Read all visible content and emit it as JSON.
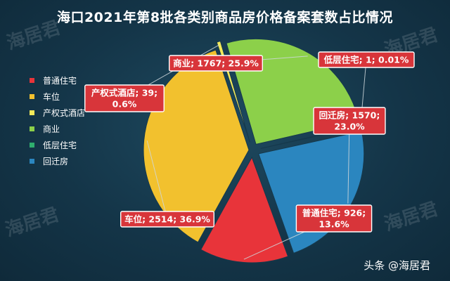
{
  "chart_data": {
    "type": "pie",
    "title": "海口2021年第8批各类别商品房价格备案套数占比情况",
    "categories": [
      "普通住宅",
      "车位",
      "产权式酒店",
      "商业",
      "低层住宅",
      "回迁房"
    ],
    "values": [
      926,
      2514,
      39,
      1767,
      1,
      1570
    ],
    "percents": [
      "13.6%",
      "36.9%",
      "0.6%",
      "25.9%",
      "0.01%",
      "23.0%"
    ],
    "labels": [
      [
        "普通住宅; 926;",
        "13.6%"
      ],
      [
        "车位; 2514; 36.9%"
      ],
      [
        "产权式酒店; 39;",
        "0.6%"
      ],
      [
        "商业; 1767; 25.9%"
      ],
      [
        "低层住宅; 1; 0.01%"
      ],
      [
        "回迁房; 1570;",
        "23.0%"
      ]
    ],
    "colors": [
      "#e8343a",
      "#f2c12e",
      "#f3e95a",
      "#8cd04a",
      "#2fae6e",
      "#2b86bf"
    ],
    "legend_position": "left"
  },
  "watermark": "海居君",
  "credit": "头条 @海居君"
}
